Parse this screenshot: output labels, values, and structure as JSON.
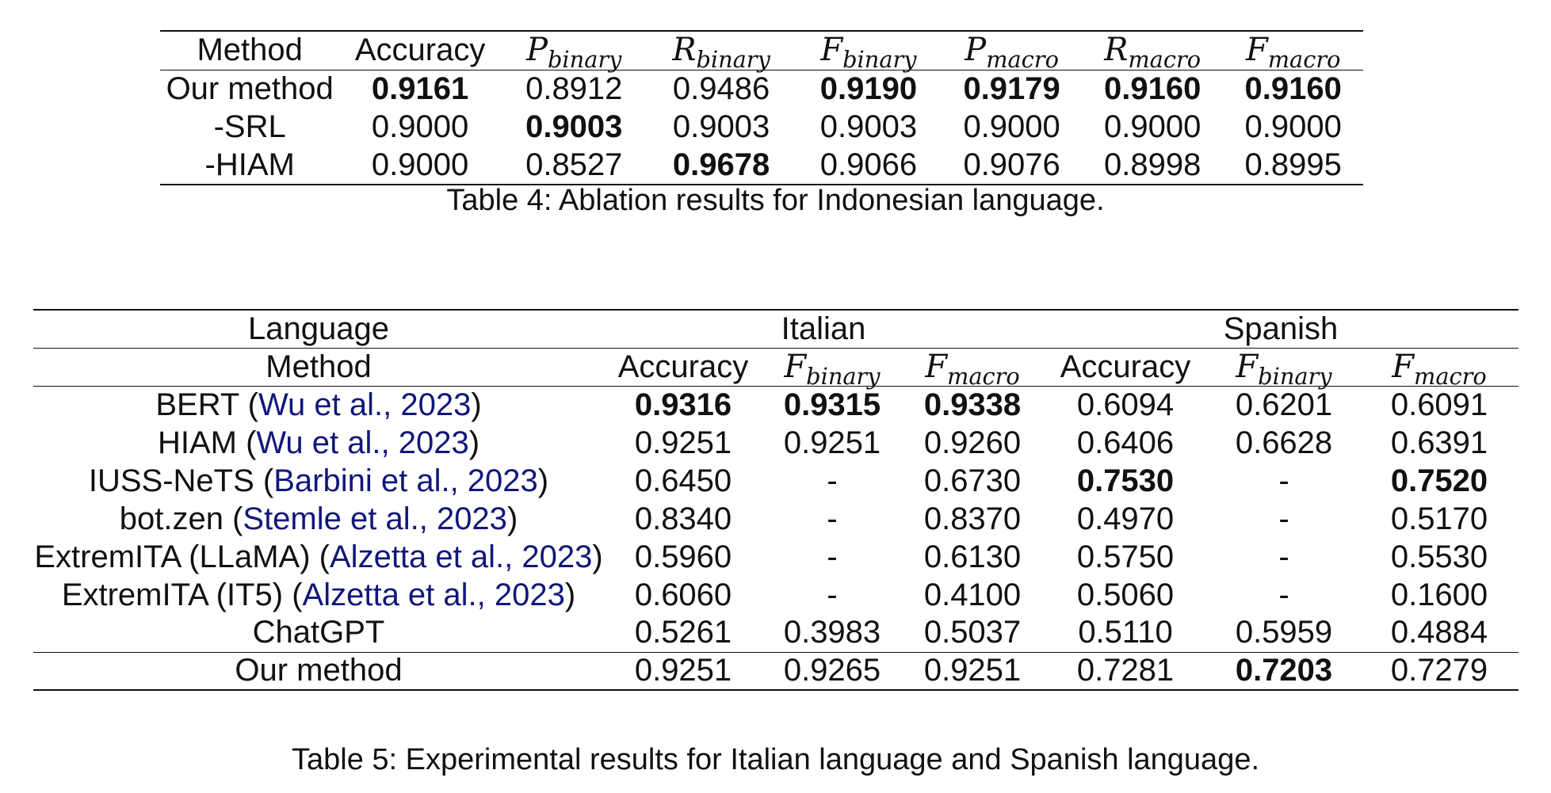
{
  "table4": {
    "headers": {
      "method": "Method",
      "accuracy": "Accuracy",
      "p_binary_sym": "P",
      "p_binary_sub": "binary",
      "r_binary_sym": "R",
      "r_binary_sub": "binary",
      "f_binary_sym": "F",
      "f_binary_sub": "binary",
      "p_macro_sym": "P",
      "p_macro_sub": "macro",
      "r_macro_sym": "R",
      "r_macro_sub": "macro",
      "f_macro_sym": "F",
      "f_macro_sub": "macro"
    },
    "rows": [
      {
        "method": "Our method",
        "values": [
          "0.9161",
          "0.8912",
          "0.9486",
          "0.9190",
          "0.9179",
          "0.9160",
          "0.9160"
        ],
        "bold": [
          true,
          false,
          false,
          true,
          true,
          true,
          true
        ]
      },
      {
        "method": "-SRL",
        "values": [
          "0.9000",
          "0.9003",
          "0.9003",
          "0.9003",
          "0.9000",
          "0.9000",
          "0.9000"
        ],
        "bold": [
          false,
          true,
          false,
          false,
          false,
          false,
          false
        ]
      },
      {
        "method": "-HIAM",
        "values": [
          "0.9000",
          "0.8527",
          "0.9678",
          "0.9066",
          "0.9076",
          "0.8998",
          "0.8995"
        ],
        "bold": [
          false,
          false,
          true,
          false,
          false,
          false,
          false
        ]
      }
    ],
    "caption": "Table 4: Ablation results for Indonesian language."
  },
  "table5": {
    "language_label": "Language",
    "italian_label": "Italian",
    "spanish_label": "Spanish",
    "headers": {
      "method": "Method",
      "accuracy": "Accuracy",
      "f_binary_sym": "F",
      "f_binary_sub": "binary",
      "f_macro_sym": "F",
      "f_macro_sub": "macro"
    },
    "rows": [
      {
        "name": "BERT",
        "cite": "Wu et al., 2023",
        "values": [
          "0.9316",
          "0.9315",
          "0.9338",
          "0.6094",
          "0.6201",
          "0.6091"
        ],
        "bold": [
          true,
          true,
          true,
          false,
          false,
          false
        ]
      },
      {
        "name": "HIAM",
        "cite": "Wu et al., 2023",
        "values": [
          "0.9251",
          "0.9251",
          "0.9260",
          "0.6406",
          "0.6628",
          "0.6391"
        ],
        "bold": [
          false,
          false,
          false,
          false,
          false,
          false
        ]
      },
      {
        "name": "IUSS-NeTS",
        "cite": "Barbini et al., 2023",
        "values": [
          "0.6450",
          "-",
          "0.6730",
          "0.7530",
          "-",
          "0.7520"
        ],
        "bold": [
          false,
          false,
          false,
          true,
          false,
          true
        ]
      },
      {
        "name": "bot.zen",
        "cite": "Stemle et al., 2023",
        "values": [
          "0.8340",
          "-",
          "0.8370",
          "0.4970",
          "-",
          "0.5170"
        ],
        "bold": [
          false,
          false,
          false,
          false,
          false,
          false
        ]
      },
      {
        "name": "ExtremITA (LLaMA)",
        "cite": "Alzetta et al., 2023",
        "values": [
          "0.5960",
          "-",
          "0.6130",
          "0.5750",
          "-",
          "0.5530"
        ],
        "bold": [
          false,
          false,
          false,
          false,
          false,
          false
        ]
      },
      {
        "name": "ExtremITA (IT5)",
        "cite": "Alzetta et al., 2023",
        "values": [
          "0.6060",
          "-",
          "0.4100",
          "0.5060",
          "-",
          "0.1600"
        ],
        "bold": [
          false,
          false,
          false,
          false,
          false,
          false
        ]
      },
      {
        "name": "ChatGPT",
        "cite": "",
        "values": [
          "0.5261",
          "0.3983",
          "0.5037",
          "0.5110",
          "0.5959",
          "0.4884"
        ],
        "bold": [
          false,
          false,
          false,
          false,
          false,
          false
        ]
      },
      {
        "name": "Our method",
        "cite": "",
        "values": [
          "0.9251",
          "0.9265",
          "0.9251",
          "0.7281",
          "0.7203",
          "0.7279"
        ],
        "bold": [
          false,
          false,
          false,
          false,
          true,
          false
        ]
      }
    ],
    "caption": "Table 5: Experimental results for Italian language and Spanish language."
  }
}
